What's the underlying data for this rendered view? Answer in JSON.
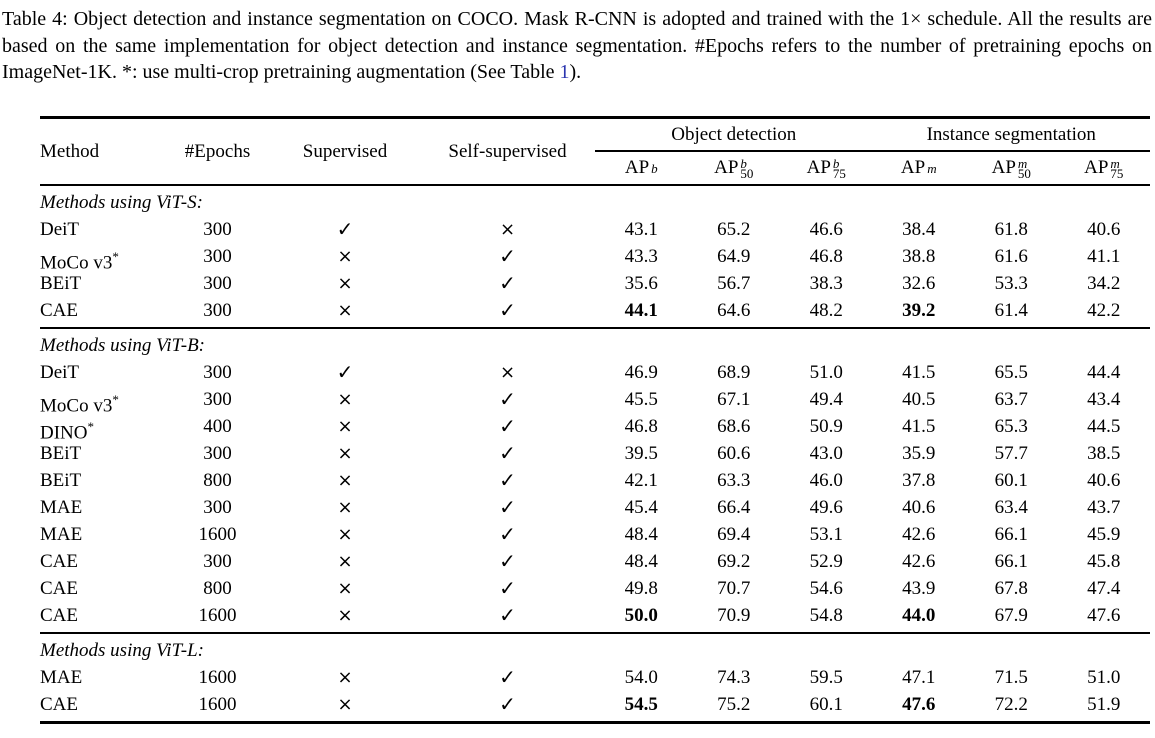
{
  "caption": {
    "part1": "Table 4: Object detection and instance segmentation on COCO. Mask R-CNN is adopted and trained with the 1× schedule. All the results are based on the same implementation for object detection and instance segmentation. #Epochs refers to the number of pretraining epochs on ImageNet-1K. *: use multi-crop pretraining augmentation (See Table ",
    "link_text": "1",
    "part2": ").",
    "link_color": "#2b35af"
  },
  "table": {
    "columns": {
      "method": "Method",
      "epochs": "#Epochs",
      "supervised": "Supervised",
      "self_supervised": "Self-supervised",
      "group1": "Object detection",
      "group2": "Instance segmentation",
      "metrics": [
        {
          "base": "AP",
          "sup": "b",
          "sub": ""
        },
        {
          "base": "AP",
          "sup": "b",
          "sub": "50"
        },
        {
          "base": "AP",
          "sup": "b",
          "sub": "75"
        },
        {
          "base": "AP",
          "sup": "m",
          "sub": ""
        },
        {
          "base": "AP",
          "sup": "m",
          "sub": "50"
        },
        {
          "base": "AP",
          "sup": "m",
          "sub": "75"
        }
      ]
    },
    "check_glyph": "✓",
    "cross_glyph": "×",
    "sections": [
      {
        "label": "Methods using ViT-S:",
        "rows": [
          {
            "method": "DeiT",
            "star": false,
            "epochs": "300",
            "supervised": "✓",
            "self_supervised": "×",
            "values": [
              {
                "v": "43.1",
                "b": false
              },
              {
                "v": "65.2",
                "b": false
              },
              {
                "v": "46.6",
                "b": false
              },
              {
                "v": "38.4",
                "b": false
              },
              {
                "v": "61.8",
                "b": false
              },
              {
                "v": "40.6",
                "b": false
              }
            ]
          },
          {
            "method": "MoCo v3",
            "star": true,
            "epochs": "300",
            "supervised": "×",
            "self_supervised": "✓",
            "values": [
              {
                "v": "43.3",
                "b": false
              },
              {
                "v": "64.9",
                "b": false
              },
              {
                "v": "46.8",
                "b": false
              },
              {
                "v": "38.8",
                "b": false
              },
              {
                "v": "61.6",
                "b": false
              },
              {
                "v": "41.1",
                "b": false
              }
            ]
          },
          {
            "method": "BEiT",
            "star": false,
            "epochs": "300",
            "supervised": "×",
            "self_supervised": "✓",
            "values": [
              {
                "v": "35.6",
                "b": false
              },
              {
                "v": "56.7",
                "b": false
              },
              {
                "v": "38.3",
                "b": false
              },
              {
                "v": "32.6",
                "b": false
              },
              {
                "v": "53.3",
                "b": false
              },
              {
                "v": "34.2",
                "b": false
              }
            ]
          },
          {
            "method": "CAE",
            "star": false,
            "epochs": "300",
            "supervised": "×",
            "self_supervised": "✓",
            "values": [
              {
                "v": "44.1",
                "b": true
              },
              {
                "v": "64.6",
                "b": false
              },
              {
                "v": "48.2",
                "b": false
              },
              {
                "v": "39.2",
                "b": true
              },
              {
                "v": "61.4",
                "b": false
              },
              {
                "v": "42.2",
                "b": false
              }
            ]
          }
        ]
      },
      {
        "label": "Methods using ViT-B:",
        "rows": [
          {
            "method": "DeiT",
            "star": false,
            "epochs": "300",
            "supervised": "✓",
            "self_supervised": "×",
            "values": [
              {
                "v": "46.9",
                "b": false
              },
              {
                "v": "68.9",
                "b": false
              },
              {
                "v": "51.0",
                "b": false
              },
              {
                "v": "41.5",
                "b": false
              },
              {
                "v": "65.5",
                "b": false
              },
              {
                "v": "44.4",
                "b": false
              }
            ]
          },
          {
            "method": "MoCo v3",
            "star": true,
            "epochs": "300",
            "supervised": "×",
            "self_supervised": "✓",
            "values": [
              {
                "v": "45.5",
                "b": false
              },
              {
                "v": "67.1",
                "b": false
              },
              {
                "v": "49.4",
                "b": false
              },
              {
                "v": "40.5",
                "b": false
              },
              {
                "v": "63.7",
                "b": false
              },
              {
                "v": "43.4",
                "b": false
              }
            ]
          },
          {
            "method": "DINO",
            "star": true,
            "epochs": "400",
            "supervised": "×",
            "self_supervised": "✓",
            "values": [
              {
                "v": "46.8",
                "b": false
              },
              {
                "v": "68.6",
                "b": false
              },
              {
                "v": "50.9",
                "b": false
              },
              {
                "v": "41.5",
                "b": false
              },
              {
                "v": "65.3",
                "b": false
              },
              {
                "v": "44.5",
                "b": false
              }
            ]
          },
          {
            "method": "BEiT",
            "star": false,
            "epochs": "300",
            "supervised": "×",
            "self_supervised": "✓",
            "values": [
              {
                "v": "39.5",
                "b": false
              },
              {
                "v": "60.6",
                "b": false
              },
              {
                "v": "43.0",
                "b": false
              },
              {
                "v": "35.9",
                "b": false
              },
              {
                "v": "57.7",
                "b": false
              },
              {
                "v": "38.5",
                "b": false
              }
            ]
          },
          {
            "method": "BEiT",
            "star": false,
            "epochs": "800",
            "supervised": "×",
            "self_supervised": "✓",
            "values": [
              {
                "v": "42.1",
                "b": false
              },
              {
                "v": "63.3",
                "b": false
              },
              {
                "v": "46.0",
                "b": false
              },
              {
                "v": "37.8",
                "b": false
              },
              {
                "v": "60.1",
                "b": false
              },
              {
                "v": "40.6",
                "b": false
              }
            ]
          },
          {
            "method": "MAE",
            "star": false,
            "epochs": "300",
            "supervised": "×",
            "self_supervised": "✓",
            "values": [
              {
                "v": "45.4",
                "b": false
              },
              {
                "v": "66.4",
                "b": false
              },
              {
                "v": "49.6",
                "b": false
              },
              {
                "v": "40.6",
                "b": false
              },
              {
                "v": "63.4",
                "b": false
              },
              {
                "v": "43.7",
                "b": false
              }
            ]
          },
          {
            "method": "MAE",
            "star": false,
            "epochs": "1600",
            "supervised": "×",
            "self_supervised": "✓",
            "values": [
              {
                "v": "48.4",
                "b": false
              },
              {
                "v": "69.4",
                "b": false
              },
              {
                "v": "53.1",
                "b": false
              },
              {
                "v": "42.6",
                "b": false
              },
              {
                "v": "66.1",
                "b": false
              },
              {
                "v": "45.9",
                "b": false
              }
            ]
          },
          {
            "method": "CAE",
            "star": false,
            "epochs": "300",
            "supervised": "×",
            "self_supervised": "✓",
            "values": [
              {
                "v": "48.4",
                "b": false
              },
              {
                "v": "69.2",
                "b": false
              },
              {
                "v": "52.9",
                "b": false
              },
              {
                "v": "42.6",
                "b": false
              },
              {
                "v": "66.1",
                "b": false
              },
              {
                "v": "45.8",
                "b": false
              }
            ]
          },
          {
            "method": "CAE",
            "star": false,
            "epochs": "800",
            "supervised": "×",
            "self_supervised": "✓",
            "values": [
              {
                "v": "49.8",
                "b": false
              },
              {
                "v": "70.7",
                "b": false
              },
              {
                "v": "54.6",
                "b": false
              },
              {
                "v": "43.9",
                "b": false
              },
              {
                "v": "67.8",
                "b": false
              },
              {
                "v": "47.4",
                "b": false
              }
            ]
          },
          {
            "method": "CAE",
            "star": false,
            "epochs": "1600",
            "supervised": "×",
            "self_supervised": "✓",
            "values": [
              {
                "v": "50.0",
                "b": true
              },
              {
                "v": "70.9",
                "b": false
              },
              {
                "v": "54.8",
                "b": false
              },
              {
                "v": "44.0",
                "b": true
              },
              {
                "v": "67.9",
                "b": false
              },
              {
                "v": "47.6",
                "b": false
              }
            ]
          }
        ]
      },
      {
        "label": "Methods using ViT-L:",
        "rows": [
          {
            "method": "MAE",
            "star": false,
            "epochs": "1600",
            "supervised": "×",
            "self_supervised": "✓",
            "values": [
              {
                "v": "54.0",
                "b": false
              },
              {
                "v": "74.3",
                "b": false
              },
              {
                "v": "59.5",
                "b": false
              },
              {
                "v": "47.1",
                "b": false
              },
              {
                "v": "71.5",
                "b": false
              },
              {
                "v": "51.0",
                "b": false
              }
            ]
          },
          {
            "method": "CAE",
            "star": false,
            "epochs": "1600",
            "supervised": "×",
            "self_supervised": "✓",
            "values": [
              {
                "v": "54.5",
                "b": true
              },
              {
                "v": "75.2",
                "b": false
              },
              {
                "v": "60.1",
                "b": false
              },
              {
                "v": "47.6",
                "b": true
              },
              {
                "v": "72.2",
                "b": false
              },
              {
                "v": "51.9",
                "b": false
              }
            ]
          }
        ]
      }
    ]
  }
}
